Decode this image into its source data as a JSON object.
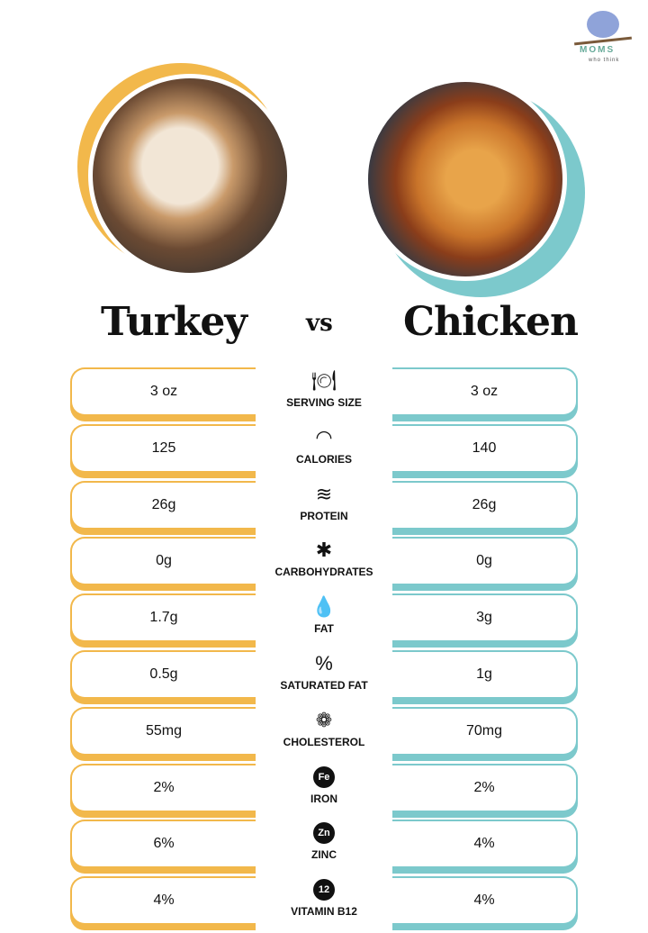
{
  "logo": {
    "text": "MOMS",
    "sub": "who think"
  },
  "header": {
    "left": "Turkey",
    "vs": "vs",
    "right": "Chicken"
  },
  "colors": {
    "turkey": "#f2b84b",
    "chicken": "#7cc9cc"
  },
  "rows": [
    {
      "label": "SERVING SIZE",
      "icon": "plate-cutlery-icon",
      "glyph": "🍽",
      "turkey": "3 oz",
      "chicken": "3 oz"
    },
    {
      "label": "CALORIES",
      "icon": "gauge-icon",
      "glyph": "◠",
      "turkey": "125",
      "chicken": "140"
    },
    {
      "label": "PROTEIN",
      "icon": "dna-icon",
      "glyph": "≋",
      "turkey": "26g",
      "chicken": "26g"
    },
    {
      "label": "CARBOHYDRATES",
      "icon": "wheat-icon",
      "glyph": "✱",
      "turkey": "0g",
      "chicken": "0g"
    },
    {
      "label": "FAT",
      "icon": "drop-icon",
      "glyph": "💧",
      "turkey": "1.7g",
      "chicken": "3g"
    },
    {
      "label": "SATURATED FAT",
      "icon": "percent-drop-icon",
      "glyph": "%",
      "turkey": "0.5g",
      "chicken": "1g"
    },
    {
      "label": "CHOLESTEROL",
      "icon": "molecule-icon",
      "glyph": "❁",
      "turkey": "55mg",
      "chicken": "70mg"
    },
    {
      "label": "IRON",
      "icon": "fe-badge-icon",
      "glyph": "Fe",
      "turkey": "2%",
      "chicken": "2%"
    },
    {
      "label": "ZINC",
      "icon": "zn-badge-icon",
      "glyph": "Zn",
      "turkey": "6%",
      "chicken": "4%"
    },
    {
      "label": "VITAMIN B12",
      "icon": "b12-badge-icon",
      "glyph": "12",
      "turkey": "4%",
      "chicken": "4%"
    }
  ]
}
